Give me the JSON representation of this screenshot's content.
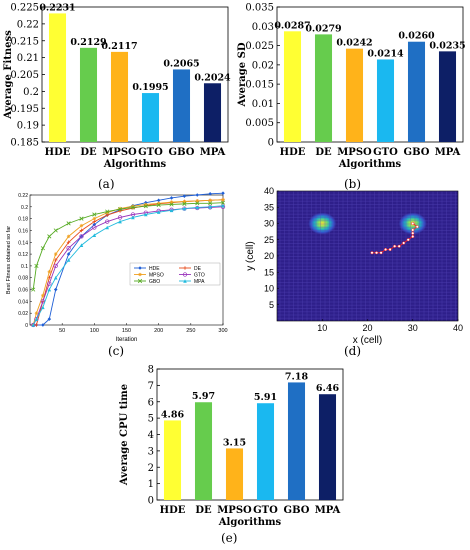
{
  "chart_data": [
    {
      "type": "bar",
      "panel": "(a)",
      "ylabel": "Average Fitness",
      "xlabel": "Algorithms",
      "categories": [
        "HDE",
        "DE",
        "MPSO",
        "GTO",
        "GBO",
        "MPA"
      ],
      "values": [
        0.2231,
        0.2129,
        0.2117,
        0.1995,
        0.2065,
        0.2024
      ],
      "data_labels": [
        "0.2231",
        "0.2129",
        "0.2117",
        "0.1995",
        "0.2065",
        "0.2024"
      ],
      "ylim": [
        0.185,
        0.225
      ],
      "yticks": [
        "0.185",
        "0.19",
        "0.195",
        "0.2",
        "0.205",
        "0.21",
        "0.215",
        "0.22",
        "0.225"
      ],
      "colors": [
        "#FFFF33",
        "#66CC4D",
        "#FFB31A",
        "#1AB8F0",
        "#1F6FC4",
        "#0D1F66"
      ]
    },
    {
      "type": "bar",
      "panel": "(b)",
      "ylabel": "Average SD",
      "xlabel": "Algorithms",
      "categories": [
        "HDE",
        "DE",
        "MPSO",
        "GTO",
        "GBO",
        "MPA"
      ],
      "values": [
        0.0287,
        0.0279,
        0.0242,
        0.0214,
        0.026,
        0.0235
      ],
      "data_labels": [
        "0.0287",
        "0.0279",
        "0.0242",
        "0.0214",
        "0.0260",
        "0.0235"
      ],
      "ylim": [
        0,
        0.035
      ],
      "yticks": [
        "0",
        "0.005",
        "0.01",
        "0.015",
        "0.02",
        "0.025",
        "0.03",
        "0.035"
      ],
      "colors": [
        "#FFFF33",
        "#66CC4D",
        "#FFB31A",
        "#1AB8F0",
        "#1F6FC4",
        "#0D1F66"
      ]
    },
    {
      "type": "line",
      "panel": "(c)",
      "ylabel": "Best Fitness obtained so far",
      "xlabel": "Iteration",
      "xlim": [
        0,
        300
      ],
      "ylim": [
        0,
        0.22
      ],
      "xticks": [
        "50",
        "100",
        "150",
        "200",
        "250",
        "300"
      ],
      "yticks": [
        "0",
        "0.02",
        "0.04",
        "0.06",
        "0.08",
        "0.1",
        "0.12",
        "0.14",
        "0.16",
        "0.18",
        "0.2",
        "0.22"
      ],
      "grid": false,
      "legend_placement": "bottom-right",
      "x": [
        5,
        10,
        20,
        30,
        40,
        60,
        80,
        100,
        120,
        140,
        160,
        180,
        200,
        220,
        240,
        260,
        280,
        300
      ],
      "series": [
        {
          "name": "HDE",
          "color": "#1F5FD6",
          "marker": "diamond",
          "values": [
            0,
            0,
            0,
            0.01,
            0.06,
            0.12,
            0.15,
            0.17,
            0.186,
            0.195,
            0.202,
            0.207,
            0.211,
            0.215,
            0.218,
            0.22,
            0.222,
            0.223
          ]
        },
        {
          "name": "DE",
          "color": "#E64A1A",
          "marker": "plus",
          "values": [
            0,
            0,
            0.04,
            0.08,
            0.11,
            0.14,
            0.16,
            0.175,
            0.186,
            0.193,
            0.198,
            0.202,
            0.205,
            0.207,
            0.209,
            0.21,
            0.211,
            0.212
          ]
        },
        {
          "name": "MPSO",
          "color": "#F0A020",
          "marker": "asterisk",
          "values": [
            0,
            0.02,
            0.05,
            0.09,
            0.12,
            0.15,
            0.168,
            0.18,
            0.19,
            0.197,
            0.201,
            0.204,
            0.206,
            0.208,
            0.209,
            0.21,
            0.211,
            0.212
          ]
        },
        {
          "name": "GTO",
          "color": "#9933BB",
          "marker": "circle",
          "values": [
            0,
            0.01,
            0.04,
            0.07,
            0.1,
            0.13,
            0.15,
            0.165,
            0.175,
            0.182,
            0.187,
            0.19,
            0.193,
            0.195,
            0.197,
            0.198,
            0.199,
            0.2
          ]
        },
        {
          "name": "GBO",
          "color": "#55AA22",
          "marker": "x",
          "values": [
            0.06,
            0.1,
            0.13,
            0.15,
            0.16,
            0.172,
            0.18,
            0.187,
            0.192,
            0.196,
            0.199,
            0.201,
            0.203,
            0.204,
            0.205,
            0.206,
            0.206,
            0.207
          ]
        },
        {
          "name": "MPA",
          "color": "#22BBDD",
          "marker": "triangle",
          "values": [
            0,
            0.01,
            0.03,
            0.06,
            0.08,
            0.11,
            0.135,
            0.152,
            0.165,
            0.175,
            0.182,
            0.187,
            0.191,
            0.194,
            0.197,
            0.199,
            0.2,
            0.202
          ]
        }
      ]
    },
    {
      "type": "heatmap",
      "panel": "(d)",
      "xlabel": "x (cell)",
      "ylabel": "y (cell)",
      "xlim": [
        0,
        40
      ],
      "ylim": [
        0,
        40
      ],
      "xticks": [
        "10",
        "20",
        "30",
        "40"
      ],
      "yticks": [
        "5",
        "10",
        "15",
        "20",
        "25",
        "30",
        "35",
        "40"
      ],
      "background_color": "#2E1F8A",
      "hotspots": [
        {
          "x": 10,
          "y": 30,
          "color_center": "#FFE033"
        },
        {
          "x": 30,
          "y": 30,
          "color_center": "#FFE033"
        }
      ],
      "path_color": "#FF2020",
      "path": [
        [
          21,
          21
        ],
        [
          22,
          21
        ],
        [
          23,
          21
        ],
        [
          24,
          22
        ],
        [
          25,
          22
        ],
        [
          26,
          23
        ],
        [
          27,
          23
        ],
        [
          28,
          24
        ],
        [
          29,
          25
        ],
        [
          30,
          26
        ],
        [
          30,
          27
        ],
        [
          30,
          28
        ],
        [
          31,
          29
        ],
        [
          30,
          30
        ]
      ]
    },
    {
      "type": "bar",
      "panel": "(e)",
      "ylabel": "Average CPU time",
      "xlabel": "Algorithms",
      "categories": [
        "HDE",
        "DE",
        "MPSO",
        "GTO",
        "GBO",
        "MPA"
      ],
      "values": [
        4.86,
        5.97,
        3.15,
        5.91,
        7.18,
        6.46
      ],
      "data_labels": [
        "4.86",
        "5.97",
        "3.15",
        "5.91",
        "7.18",
        "6.46"
      ],
      "ylim": [
        0,
        8
      ],
      "yticks": [
        "0",
        "1",
        "2",
        "3",
        "4",
        "5",
        "6",
        "7",
        "8"
      ],
      "colors": [
        "#FFFF33",
        "#66CC4D",
        "#FFB31A",
        "#1AB8F0",
        "#1F6FC4",
        "#0D1F66"
      ]
    }
  ]
}
